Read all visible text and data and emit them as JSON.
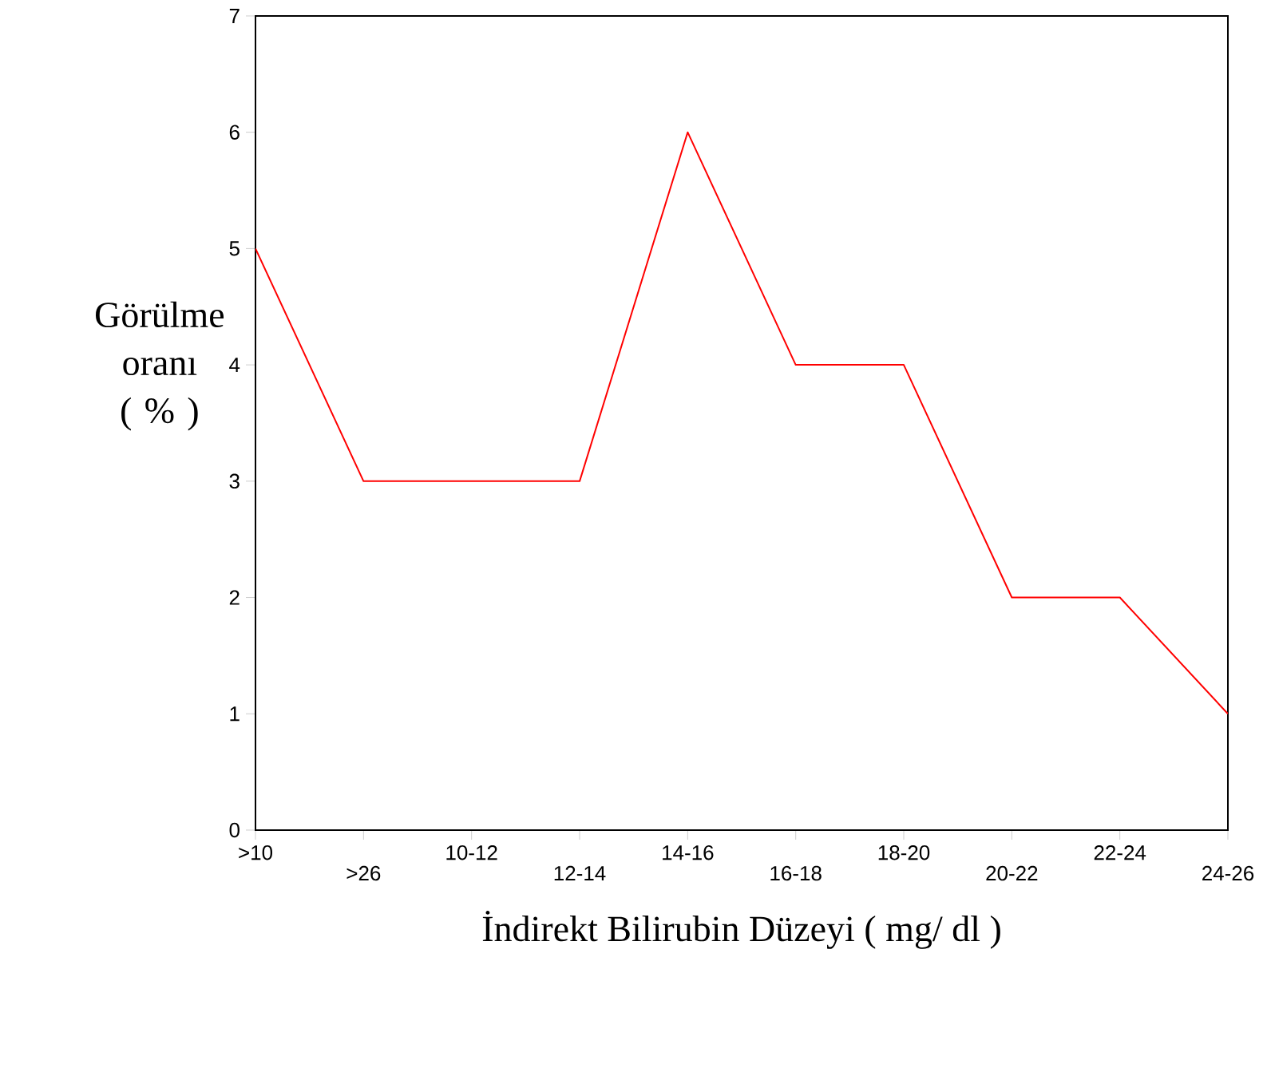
{
  "chart_data": {
    "type": "line",
    "xlabel": "İndirekt Bilirubin Düzeyi ( mg/ dl )",
    "ylabel": "Görülme oranı ( % )",
    "categories": [
      ">10",
      ">26",
      "10-12",
      "12-14",
      "14-16",
      "16-18",
      "18-20",
      "20-22",
      "22-24",
      "24-26"
    ],
    "values": [
      5,
      3,
      3,
      3,
      6,
      4,
      4,
      2,
      2,
      1
    ],
    "color": "#ff0000",
    "ylim": [
      0,
      7
    ],
    "yticks": [
      0,
      1,
      2,
      3,
      4,
      5,
      6,
      7
    ],
    "grid": false,
    "marker": "none",
    "line_style": "solid"
  }
}
